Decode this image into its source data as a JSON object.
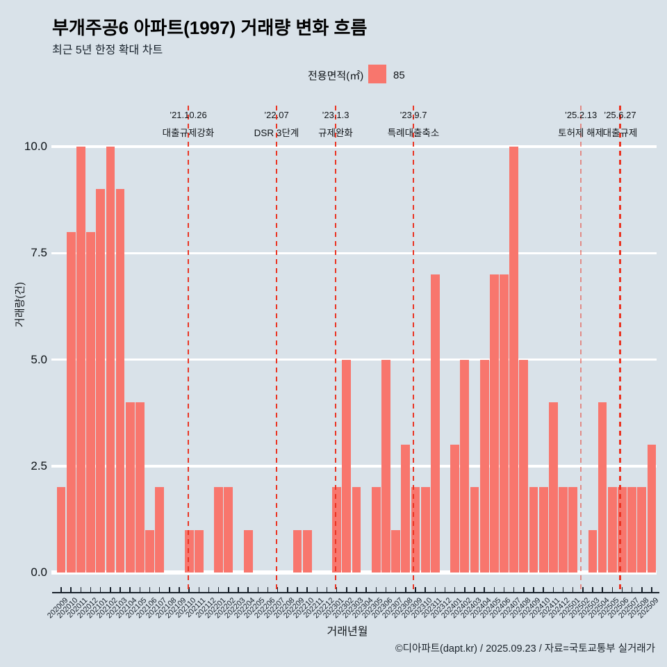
{
  "title": "부개주공6 아파트(1997) 거래량 변화 흐름",
  "subtitle": "최근 5년 한정 확대 차트",
  "legend": {
    "label": "전용면적(㎡)",
    "value": "85",
    "swatch_color": "#f8766d"
  },
  "annotations": [
    {
      "date": "’21.10.26",
      "label": "대출규제강화",
      "x_index": 12.91,
      "light": false
    },
    {
      "date": "’22.07",
      "label": "DSR 3단계",
      "x_index": 21.88,
      "light": false
    },
    {
      "date": "’23.1.3",
      "label": "규제완화",
      "x_index": 27.88,
      "light": false
    },
    {
      "date": "’23.9.7",
      "label": "특례대출축소",
      "x_index": 35.79,
      "light": false
    },
    {
      "date": "’25.2.13",
      "label": "토허제 해제",
      "x_index": 52.81,
      "light": true
    },
    {
      "date": "’25.6.27",
      "label": "대출규제",
      "x_index": 56.79,
      "light": false
    }
  ],
  "chart_data": {
    "type": "bar",
    "title": "부개주공6 아파트(1997) 거래량 변화 흐름",
    "xlabel": "거래년월",
    "ylabel": "거래량(건)",
    "ylim": [
      0,
      10
    ],
    "yticks": [
      0,
      2.5,
      5,
      7.5,
      10
    ],
    "ytick_labels": [
      "0.0",
      "2.5",
      "5.0",
      "7.5",
      "10.0"
    ],
    "grid": "horizontal-white",
    "legend_position": "top",
    "bar_color": "#f8766d",
    "categories": [
      "202009",
      "202010",
      "202011",
      "202012",
      "202101",
      "202102",
      "202103",
      "202104",
      "202105",
      "202106",
      "202107",
      "202108",
      "202109",
      "202110",
      "202111",
      "202112",
      "202201",
      "202202",
      "202203",
      "202204",
      "202205",
      "202206",
      "202207",
      "202208",
      "202209",
      "202210",
      "202211",
      "202212",
      "202301",
      "202302",
      "202303",
      "202304",
      "202305",
      "202306",
      "202307",
      "202308",
      "202309",
      "202310",
      "202311",
      "202312",
      "202401",
      "202402",
      "202403",
      "202404",
      "202405",
      "202406",
      "202407",
      "202408",
      "202409",
      "202410",
      "202411",
      "202412",
      "202501",
      "202502",
      "202503",
      "202504",
      "202505",
      "202506",
      "202507",
      "202508",
      "202509"
    ],
    "values": [
      2,
      8,
      10,
      8,
      9,
      10,
      9,
      4,
      4,
      1,
      2,
      0,
      0,
      1,
      1,
      0,
      2,
      2,
      0,
      1,
      0,
      0,
      0,
      0,
      1,
      1,
      0,
      0,
      2,
      5,
      2,
      0,
      2,
      5,
      1,
      3,
      2,
      2,
      7,
      0,
      3,
      5,
      2,
      5,
      7,
      7,
      10,
      5,
      2,
      2,
      4,
      2,
      2,
      0,
      1,
      4,
      2,
      2,
      2,
      2,
      3
    ]
  },
  "footer": "©디아파트(dapt.kr) / 2025.09.23 / 자료=국토교통부 실거래가",
  "colors": {
    "background": "#d9e2e9",
    "bar": "#f8766d",
    "gridline": "#ffffff",
    "annotation_line": "#ea3423",
    "axis": "#17202a"
  }
}
